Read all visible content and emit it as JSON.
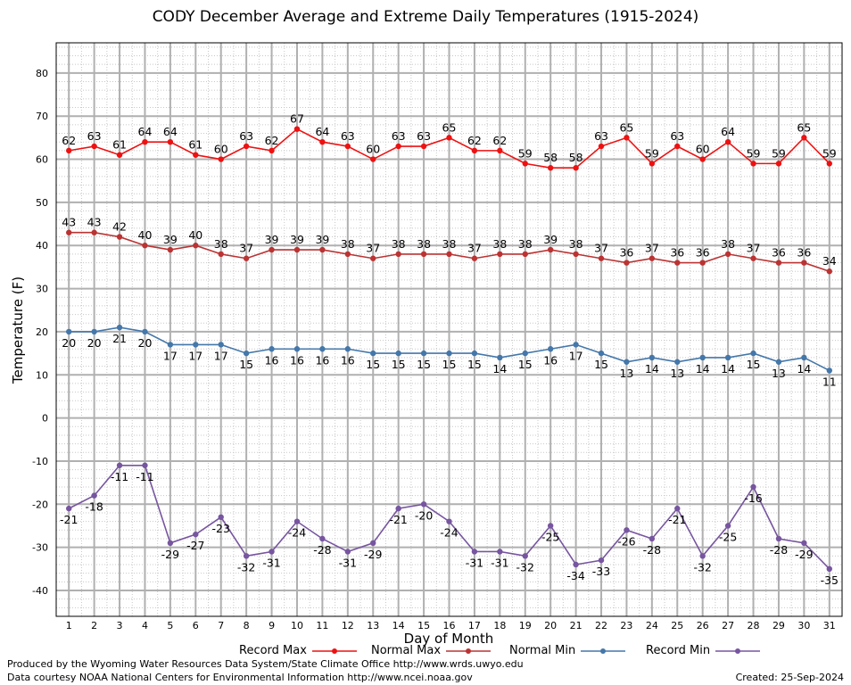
{
  "chart_data": {
    "type": "line",
    "title": "CODY December Average and Extreme Daily Temperatures (1915-2024)",
    "xlabel": "Day of Month",
    "ylabel": "Temperature (F)",
    "x": [
      1,
      2,
      3,
      4,
      5,
      6,
      7,
      8,
      9,
      10,
      11,
      12,
      13,
      14,
      15,
      16,
      17,
      18,
      19,
      20,
      21,
      22,
      23,
      24,
      25,
      26,
      27,
      28,
      29,
      30,
      31
    ],
    "xlim": [
      0.5,
      31.5
    ],
    "ylim": [
      -46,
      87
    ],
    "yticks": [
      -40,
      -30,
      -20,
      -10,
      0,
      10,
      20,
      30,
      40,
      50,
      60,
      70,
      80
    ],
    "grid": true,
    "legend_position": "bottom",
    "series": [
      {
        "name": "Record Max",
        "color": "#ee1111",
        "label_pos": "above",
        "values": [
          62,
          63,
          61,
          64,
          64,
          61,
          60,
          63,
          62,
          67,
          64,
          63,
          60,
          63,
          63,
          65,
          62,
          62,
          59,
          58,
          58,
          63,
          65,
          59,
          63,
          60,
          64,
          59,
          59,
          65,
          59
        ]
      },
      {
        "name": "Normal Max",
        "color": "#bb3333",
        "label_pos": "above",
        "values": [
          43,
          43,
          42,
          40,
          39,
          40,
          38,
          37,
          39,
          39,
          39,
          38,
          37,
          38,
          38,
          38,
          37,
          38,
          38,
          39,
          38,
          37,
          36,
          37,
          36,
          36,
          38,
          37,
          36,
          36,
          34
        ]
      },
      {
        "name": "Normal Min",
        "color": "#4477aa",
        "label_pos": "below",
        "values": [
          20,
          20,
          21,
          20,
          17,
          17,
          17,
          15,
          16,
          16,
          16,
          16,
          15,
          15,
          15,
          15,
          15,
          14,
          15,
          16,
          17,
          15,
          13,
          14,
          13,
          14,
          14,
          15,
          13,
          14,
          11
        ]
      },
      {
        "name": "Record Min",
        "color": "#7755a0",
        "label_pos": "below",
        "values": [
          -21,
          -18,
          -11,
          -11,
          -29,
          -27,
          -23,
          -32,
          -31,
          -24,
          -28,
          -31,
          -29,
          -21,
          -20,
          -24,
          -31,
          -31,
          -32,
          -25,
          -34,
          -33,
          -26,
          -28,
          -21,
          -32,
          -25,
          -16,
          -28,
          -29,
          -35
        ]
      }
    ]
  },
  "footer": {
    "produced_by": "Produced by the Wyoming Water Resources Data System/State Climate Office http://www.wrds.uwyo.edu",
    "data_courtesy": "Data courtesy NOAA National Centers for Environmental Information http://www.ncei.noaa.gov",
    "created": "Created:  25-Sep-2024"
  }
}
